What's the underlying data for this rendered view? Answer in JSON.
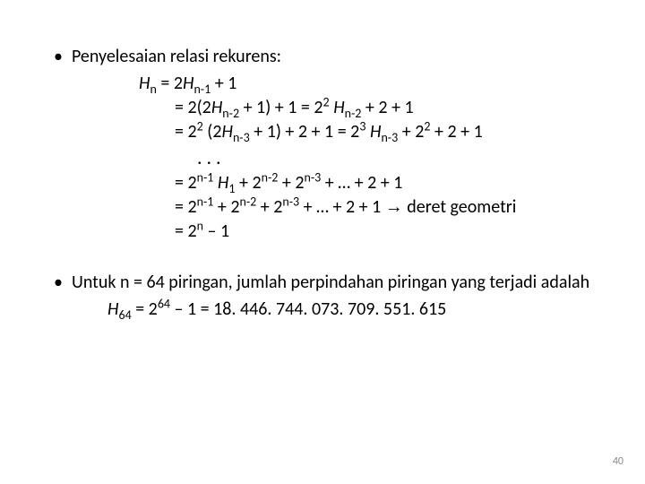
{
  "colors": {
    "background": "#ffffff",
    "text": "#000000",
    "pageNumber": "#8b8b8b"
  },
  "typography": {
    "body_fontsize": 20,
    "pagenum_fontsize": 12,
    "font_family": "Calibri, Arial, sans-serif"
  },
  "bullet1": {
    "text": "Penyelesaian relasi rekurens:"
  },
  "math": {
    "l1_lhs": "H",
    "l1_sub": "n",
    "l1_rhs_a": "  = 2",
    "l1_rhs_b": "H",
    "l1_rhs_sub": "n-1",
    "l1_rhs_c": " + 1",
    "l2_a": "= 2(2",
    "l2_b": "H",
    "l2_sub1": "n-2",
    "l2_c": " + 1) + 1 = 2",
    "l2_sup1": "2",
    "l2_d": " ",
    "l2_e": "H",
    "l2_sub2": "n-2",
    "l2_f": "  + 2 + 1",
    "l3_a": "= 2",
    "l3_sup1": "2",
    "l3_b": " (2",
    "l3_c": "H",
    "l3_sub1": "n-3",
    "l3_d": " + 1) + 2 + 1  = 2",
    "l3_sup2": "3",
    "l3_e": " ",
    "l3_f": "H",
    "l3_sub2": "n-3",
    "l3_g": "  + 2",
    "l3_sup3": "2",
    "l3_h": " + 2 + 1",
    "dots": ". . .",
    "l5_a": "= 2",
    "l5_sup1": "n-1",
    "l5_b": " ",
    "l5_c": "H",
    "l5_sub1": "1",
    "l5_d": "  + 2",
    "l5_sup2": "n-2",
    "l5_e": " + 2",
    "l5_sup3": "n-3",
    "l5_f": " + … + 2 + 1",
    "l6_a": "= 2",
    "l6_sup1": "n-1",
    "l6_b": " + 2",
    "l6_sup2": "n-2",
    "l6_c": " + 2",
    "l6_sup3": "n-3",
    "l6_d": " + … + 2 + 1   ",
    "l6_arrow": "→",
    "l6_e": " deret geometri",
    "l7_a": "= 2",
    "l7_sup1": "n",
    "l7_b": " – 1"
  },
  "bullet2": {
    "text": "Untuk n = 64 piringan, jumlah perpindahan piringan yang terjadi adalah"
  },
  "result": {
    "a": "H",
    "sub": "64",
    "b": " = 2",
    "sup": "64",
    "c": " – 1 = 18. 446. 744. 073. 709. 551. 615"
  },
  "pageNumber": "40"
}
